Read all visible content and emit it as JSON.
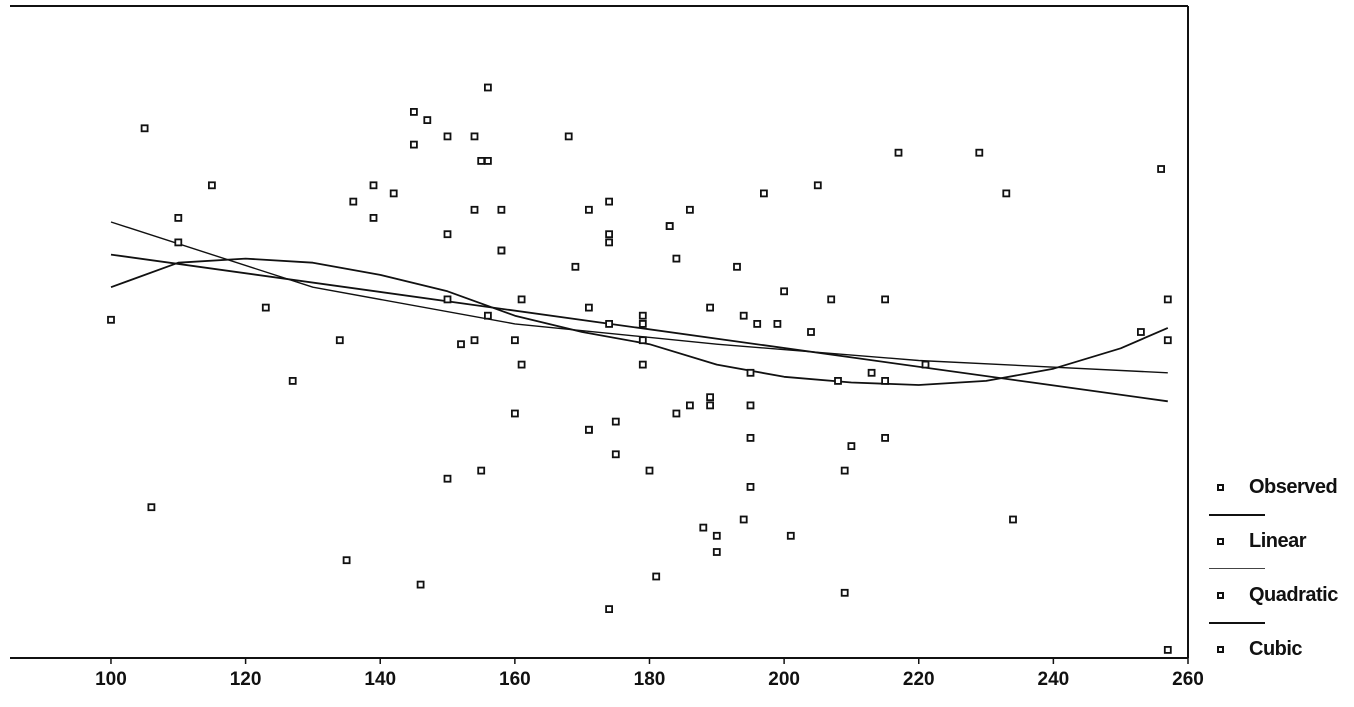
{
  "chart_data": {
    "type": "scatter",
    "xlabel": "",
    "ylabel": "",
    "xlim": [
      85,
      260
    ],
    "ylim": [
      0,
      80
    ],
    "grid": false,
    "legend_position": "bottom-right",
    "x_ticks": [
      "100",
      "120",
      "140",
      "160",
      "180",
      "200",
      "220",
      "240",
      "260"
    ],
    "legend": [
      "Observed",
      "Linear",
      "Quadratic",
      "Cubic"
    ],
    "series": [
      {
        "name": "Observed",
        "kind": "points",
        "points": [
          [
            100,
            41.5
          ],
          [
            105,
            65
          ],
          [
            106,
            18.5
          ],
          [
            110,
            54
          ],
          [
            110,
            51
          ],
          [
            115,
            58
          ],
          [
            123,
            43
          ],
          [
            127,
            34
          ],
          [
            134,
            39
          ],
          [
            135,
            12
          ],
          [
            136,
            56
          ],
          [
            139,
            54
          ],
          [
            139,
            58
          ],
          [
            142,
            57
          ],
          [
            145,
            63
          ],
          [
            145,
            67
          ],
          [
            146,
            9
          ],
          [
            147,
            66
          ],
          [
            150,
            64
          ],
          [
            150,
            52
          ],
          [
            150,
            44
          ],
          [
            150,
            22
          ],
          [
            152,
            38.5
          ],
          [
            154,
            64
          ],
          [
            154,
            55
          ],
          [
            154,
            39
          ],
          [
            155,
            61
          ],
          [
            155,
            23
          ],
          [
            156,
            61
          ],
          [
            156,
            70
          ],
          [
            156,
            42
          ],
          [
            158,
            55
          ],
          [
            158,
            50
          ],
          [
            158,
            50
          ],
          [
            160,
            39
          ],
          [
            160,
            30
          ],
          [
            161,
            44
          ],
          [
            161,
            36
          ],
          [
            168,
            64
          ],
          [
            169,
            48
          ],
          [
            171,
            55
          ],
          [
            171,
            43
          ],
          [
            171,
            28
          ],
          [
            171,
            28
          ],
          [
            174,
            56
          ],
          [
            174,
            52
          ],
          [
            174,
            51
          ],
          [
            174,
            41
          ],
          [
            174,
            6
          ],
          [
            175,
            29
          ],
          [
            175,
            25
          ],
          [
            179,
            42
          ],
          [
            179,
            41
          ],
          [
            179,
            39
          ],
          [
            179,
            36
          ],
          [
            180,
            23
          ],
          [
            181,
            10
          ],
          [
            183,
            53
          ],
          [
            183,
            53
          ],
          [
            184,
            30
          ],
          [
            184,
            49
          ],
          [
            186,
            31
          ],
          [
            186,
            55
          ],
          [
            189,
            43
          ],
          [
            189,
            31
          ],
          [
            189,
            32
          ],
          [
            188,
            16
          ],
          [
            190,
            15
          ],
          [
            190,
            13
          ],
          [
            193,
            48
          ],
          [
            194,
            42
          ],
          [
            194,
            17
          ],
          [
            195,
            27
          ],
          [
            195,
            31
          ],
          [
            195,
            35
          ],
          [
            195,
            21
          ],
          [
            196,
            41
          ],
          [
            197,
            57
          ],
          [
            199,
            41
          ],
          [
            200,
            45
          ],
          [
            201,
            15
          ],
          [
            204,
            40
          ],
          [
            205,
            58
          ],
          [
            207,
            44
          ],
          [
            208,
            34
          ],
          [
            209,
            23
          ],
          [
            209,
            8
          ],
          [
            210,
            26
          ],
          [
            213,
            35
          ],
          [
            215,
            44
          ],
          [
            215,
            34
          ],
          [
            215,
            27
          ],
          [
            217,
            62
          ],
          [
            221,
            36
          ],
          [
            229,
            62
          ],
          [
            233,
            57
          ],
          [
            234,
            17
          ],
          [
            253,
            40
          ],
          [
            256,
            60
          ],
          [
            257,
            44
          ],
          [
            257,
            39
          ],
          [
            257,
            1
          ]
        ]
      },
      {
        "name": "Linear",
        "kind": "line",
        "points": [
          [
            100,
            49.5
          ],
          [
            257,
            31.5
          ]
        ]
      },
      {
        "name": "Quadratic",
        "kind": "line",
        "points": [
          [
            100,
            53.5
          ],
          [
            130,
            45.5
          ],
          [
            160,
            41
          ],
          [
            190,
            38.5
          ],
          [
            220,
            36.5
          ],
          [
            257,
            35
          ]
        ]
      },
      {
        "name": "Cubic",
        "kind": "line",
        "points": [
          [
            100,
            45.5
          ],
          [
            110,
            48.5
          ],
          [
            120,
            49
          ],
          [
            130,
            48.5
          ],
          [
            140,
            47
          ],
          [
            150,
            45
          ],
          [
            160,
            42
          ],
          [
            170,
            40
          ],
          [
            180,
            38.5
          ],
          [
            190,
            36
          ],
          [
            200,
            34.5
          ],
          [
            210,
            33.8
          ],
          [
            220,
            33.5
          ],
          [
            230,
            34
          ],
          [
            240,
            35.5
          ],
          [
            250,
            38
          ],
          [
            257,
            40.5
          ]
        ]
      }
    ]
  }
}
